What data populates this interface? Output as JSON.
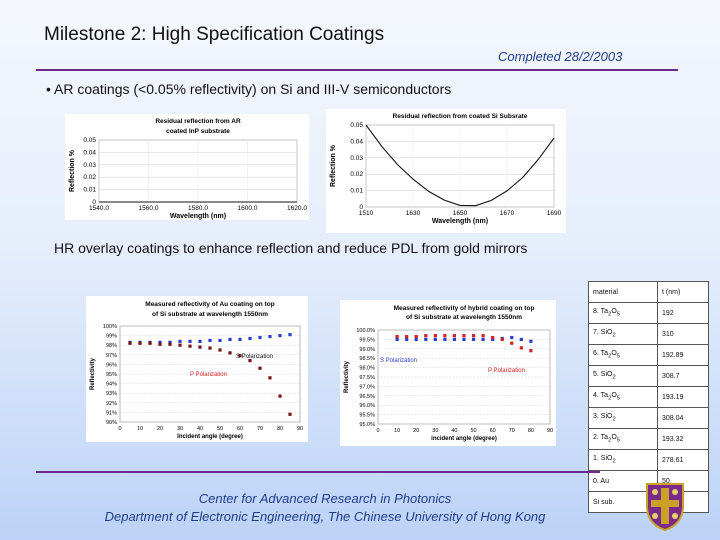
{
  "header": {
    "title": "Milestone 2: High Specification Coatings",
    "completed": "Completed 28/2/2003"
  },
  "bullet": "• AR coatings (<0.05% reflectivity) on Si and III-V semiconductors",
  "hr_text": "HR overlay coatings to enhance reflection and reduce PDL from gold mirrors",
  "colors": {
    "rule": "#6b2a8c",
    "footer": "#1f3c8a",
    "series_blue": "#2b3fd1",
    "series_red": "#d62020",
    "series_dark": "#7a1515"
  },
  "chart_data": [
    {
      "type": "line",
      "title": "Residual reflection from AR coated InP substrate",
      "xlabel": "Wavelength (nm)",
      "ylabel": "Reflection %",
      "xticks": [
        "1540.0",
        "1560.0",
        "1580.0",
        "1600.0",
        "1620.0"
      ],
      "yticks": [
        "0",
        "0.01",
        "0.02",
        "0.03",
        "0.04",
        "0.05"
      ],
      "xlim": [
        1540,
        1620
      ],
      "ylim": [
        0,
        0.05
      ],
      "grid": true,
      "series": [
        {
          "x": [
            1540,
            1560,
            1580,
            1600,
            1620
          ],
          "y": [
            0.0,
            0.0,
            0.0,
            0.0,
            0.0
          ]
        }
      ]
    },
    {
      "type": "line",
      "title": "Residual reflection from coated Si Subsrate",
      "xlabel": "Wavelength (nm)",
      "ylabel": "Reflection %",
      "xticks": [
        "1510",
        "1630",
        "1650",
        "1670",
        "1690"
      ],
      "yticks": [
        "0",
        "0.01",
        "0.02",
        "0.03",
        "0.04",
        "0.05"
      ],
      "xlim": [
        1510,
        1690
      ],
      "ylim": [
        0,
        0.05
      ],
      "grid": true,
      "series": [
        {
          "x": [
            1510,
            1525,
            1540,
            1555,
            1570,
            1585,
            1600,
            1615,
            1630,
            1645,
            1660,
            1675,
            1690
          ],
          "y": [
            0.05,
            0.037,
            0.026,
            0.017,
            0.0095,
            0.0042,
            0.001,
            0.0008,
            0.004,
            0.0098,
            0.018,
            0.029,
            0.042
          ]
        }
      ]
    },
    {
      "type": "scatter",
      "title": "Measured reflectivity of Au coating on top of Si substrate at wavelength 1550nm",
      "xlabel": "Incident angle (degree)",
      "ylabel": "Reflectivity",
      "xticks": [
        "0",
        "10",
        "20",
        "30",
        "40",
        "50",
        "60",
        "70",
        "80",
        "90"
      ],
      "yticks": [
        "100%",
        "99%",
        "98%",
        "97%",
        "96%",
        "95%",
        "94%",
        "93%",
        "92%",
        "91%",
        "90%"
      ],
      "xlim": [
        0,
        90
      ],
      "ylim": [
        90,
        100
      ],
      "annotations": [
        "S Polarization",
        "P Polarization"
      ],
      "series": [
        {
          "name": "S Polarization",
          "color": "#2b3fd1",
          "x": [
            5,
            10,
            15,
            20,
            25,
            30,
            35,
            40,
            45,
            50,
            55,
            60,
            65,
            70,
            75,
            80,
            85
          ],
          "y": [
            98.3,
            98.3,
            98.3,
            98.3,
            98.3,
            98.4,
            98.4,
            98.4,
            98.5,
            98.5,
            98.6,
            98.6,
            98.7,
            98.8,
            98.9,
            99.0,
            99.1
          ]
        },
        {
          "name": "P Polarization",
          "color": "#7a1515",
          "x": [
            5,
            10,
            15,
            20,
            25,
            30,
            35,
            40,
            45,
            50,
            55,
            60,
            65,
            70,
            75,
            80,
            85
          ],
          "y": [
            98.2,
            98.2,
            98.2,
            98.1,
            98.1,
            98.0,
            97.9,
            97.8,
            97.7,
            97.5,
            97.2,
            96.9,
            96.4,
            95.6,
            94.6,
            92.7,
            90.8
          ]
        }
      ]
    },
    {
      "type": "scatter",
      "title": "Measured reflectivity of hybrid coating on top of Si substrate at wavelength 1550nm",
      "xlabel": "incident angle (degree)",
      "ylabel": "Reflectivity",
      "xticks": [
        "0",
        "10",
        "20",
        "30",
        "40",
        "50",
        "60",
        "70",
        "80",
        "90"
      ],
      "yticks": [
        "100.0%",
        "99.5%",
        "99.0%",
        "98.5%",
        "98.0%",
        "97.5%",
        "97.0%",
        "96.5%",
        "96.0%",
        "95.5%",
        "95.0%"
      ],
      "xlim": [
        0,
        90
      ],
      "ylim": [
        95,
        100
      ],
      "annotations": [
        "S Polarization",
        "P Polarization"
      ],
      "series": [
        {
          "name": "S Polarization",
          "color": "#2b3fd1",
          "x": [
            10,
            15,
            20,
            25,
            30,
            35,
            40,
            45,
            50,
            55,
            60,
            65,
            70,
            75,
            80
          ],
          "y": [
            99.5,
            99.5,
            99.5,
            99.5,
            99.5,
            99.5,
            99.5,
            99.5,
            99.5,
            99.5,
            99.5,
            99.55,
            99.6,
            99.5,
            99.4
          ]
        },
        {
          "name": "P Polarization",
          "color": "#d62020",
          "x": [
            10,
            15,
            20,
            25,
            30,
            35,
            40,
            45,
            50,
            55,
            60,
            65,
            70,
            75,
            80
          ],
          "y": [
            99.65,
            99.65,
            99.65,
            99.7,
            99.7,
            99.7,
            99.7,
            99.7,
            99.7,
            99.7,
            99.6,
            99.5,
            99.3,
            99.05,
            98.9
          ]
        }
      ]
    }
  ],
  "layers": {
    "header": [
      "material",
      "t (nm)"
    ],
    "rows": [
      {
        "base": "8. Ta",
        "s1": "2",
        "mid": "O",
        "s2": "5",
        "t": "192"
      },
      {
        "base": "7. SiO",
        "s1": "2",
        "mid": "",
        "s2": "",
        "t": "310"
      },
      {
        "base": "6. Ta",
        "s1": "2",
        "mid": "O",
        "s2": "5",
        "t": "192.89"
      },
      {
        "base": "5. SiO",
        "s1": "2",
        "mid": "",
        "s2": "",
        "t": "308.7"
      },
      {
        "base": "4. Ta",
        "s1": "2",
        "mid": "O",
        "s2": "5",
        "t": "193.19"
      },
      {
        "base": "3. SiO",
        "s1": "2",
        "mid": "",
        "s2": "",
        "t": "308.04"
      },
      {
        "base": "2. Ta",
        "s1": "2",
        "mid": "O",
        "s2": "5",
        "t": "193.32"
      },
      {
        "base": "1. SiO",
        "s1": "2",
        "mid": "",
        "s2": "",
        "t": "278.61"
      },
      {
        "base": "0. Au",
        "s1": "",
        "mid": "",
        "s2": "",
        "t": "50"
      },
      {
        "base": "Si sub.",
        "s1": "",
        "mid": "",
        "s2": "",
        "t": ""
      }
    ]
  },
  "footer": {
    "line1": "Center for Advanced Research in Photonics",
    "line2": "Department of Electronic Engineering, The Chinese University of Hong Kong"
  },
  "logo_icon": "university-crest-icon"
}
